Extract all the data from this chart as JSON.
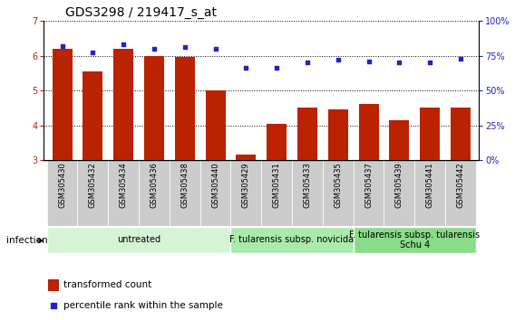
{
  "title": "GDS3298 / 219417_s_at",
  "samples": [
    "GSM305430",
    "GSM305432",
    "GSM305434",
    "GSM305436",
    "GSM305438",
    "GSM305440",
    "GSM305429",
    "GSM305431",
    "GSM305433",
    "GSM305435",
    "GSM305437",
    "GSM305439",
    "GSM305441",
    "GSM305442"
  ],
  "transformed_count": [
    6.2,
    5.55,
    6.2,
    6.0,
    5.95,
    5.0,
    3.15,
    4.05,
    4.5,
    4.45,
    4.6,
    4.15,
    4.5,
    4.5
  ],
  "percentile_rank": [
    82,
    77,
    83,
    80,
    81,
    80,
    66,
    66,
    70,
    72,
    71,
    70,
    70,
    73
  ],
  "ylim_left": [
    3,
    7
  ],
  "ylim_right": [
    0,
    100
  ],
  "yticks_left": [
    3,
    4,
    5,
    6,
    7
  ],
  "yticks_right": [
    0,
    25,
    50,
    75,
    100
  ],
  "bar_color": "#bb2200",
  "scatter_color": "#2222cc",
  "groups": [
    {
      "label": "untreated",
      "start": 0,
      "end": 6,
      "color": "#d4f5d4"
    },
    {
      "label": "F. tularensis subsp. novicida",
      "start": 6,
      "end": 10,
      "color": "#aaeaaa"
    },
    {
      "label": "F. tularensis subsp. tularensis\nSchu 4",
      "start": 10,
      "end": 14,
      "color": "#88dd88"
    }
  ],
  "xlabel_infection": "infection",
  "legend_bar_label": "transformed count",
  "legend_scatter_label": "percentile rank within the sample",
  "title_fontsize": 10,
  "axis_fontsize": 7,
  "sample_fontsize": 6,
  "group_fontsize": 7,
  "legend_fontsize": 7.5
}
